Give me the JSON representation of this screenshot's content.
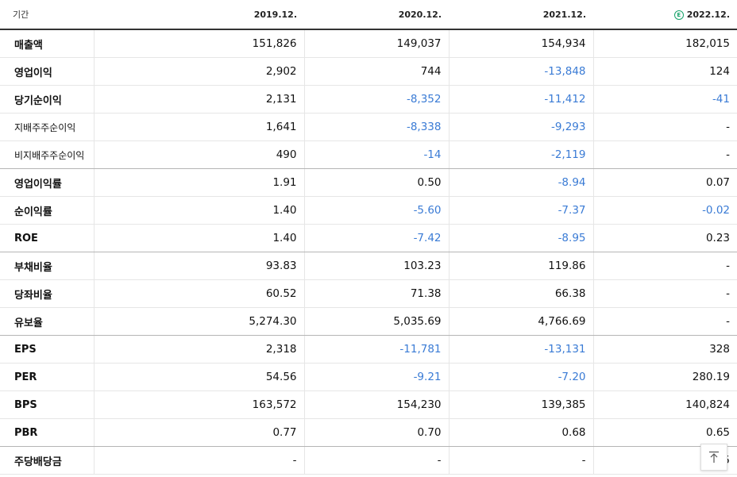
{
  "header": {
    "label": "기간",
    "columns": [
      "2019.12.",
      "2020.12.",
      "2021.12.",
      "2022.12."
    ],
    "estimate_badge": "E"
  },
  "rows": [
    {
      "label": "매출액",
      "values": [
        "151,826",
        "149,037",
        "154,934",
        "182,015"
      ]
    },
    {
      "label": "영업이익",
      "values": [
        "2,902",
        "744",
        "-13,848",
        "124"
      ]
    },
    {
      "label": "당기순이익",
      "values": [
        "2,131",
        "-8,352",
        "-11,412",
        "-41"
      ]
    },
    {
      "label": "지배주주순이익",
      "values": [
        "1,641",
        "-8,338",
        "-9,293",
        "-"
      ]
    },
    {
      "label": "비지배주주순이익",
      "values": [
        "490",
        "-14",
        "-2,119",
        "-"
      ]
    },
    {
      "label": "영업이익률",
      "values": [
        "1.91",
        "0.50",
        "-8.94",
        "0.07"
      ]
    },
    {
      "label": "순이익률",
      "values": [
        "1.40",
        "-5.60",
        "-7.37",
        "-0.02"
      ]
    },
    {
      "label": "ROE",
      "values": [
        "1.40",
        "-7.42",
        "-8.95",
        "0.23"
      ]
    },
    {
      "label": "부채비율",
      "values": [
        "93.83",
        "103.23",
        "119.86",
        "-"
      ]
    },
    {
      "label": "당좌비율",
      "values": [
        "60.52",
        "71.38",
        "66.38",
        "-"
      ]
    },
    {
      "label": "유보율",
      "values": [
        "5,274.30",
        "5,035.69",
        "4,766.69",
        "-"
      ]
    },
    {
      "label": "EPS",
      "values": [
        "2,318",
        "-11,781",
        "-13,131",
        "328"
      ]
    },
    {
      "label": "PER",
      "values": [
        "54.56",
        "-9.21",
        "-7.20",
        "280.19"
      ]
    },
    {
      "label": "BPS",
      "values": [
        "163,572",
        "154,230",
        "139,385",
        "140,824"
      ]
    },
    {
      "label": "PBR",
      "values": [
        "0.77",
        "0.70",
        "0.68",
        "0.65"
      ]
    },
    {
      "label": "주당배당금",
      "values": [
        "-",
        "-",
        "-",
        "5"
      ]
    }
  ],
  "colors": {
    "negative": "#3a7bd5",
    "estimate": "#18a36b"
  },
  "icons": {
    "scroll_top": "arrow-up-to-line-icon"
  }
}
